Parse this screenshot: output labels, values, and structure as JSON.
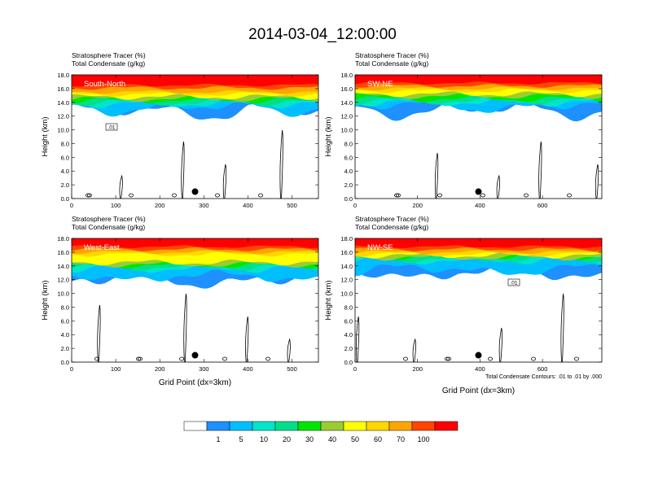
{
  "title": "2014-03-04_12:00:00",
  "chart_data": [
    {
      "type": "heatmap",
      "name": "South-North",
      "header_lines": [
        "Stratosphere Tracer   (%)",
        "Total Condensate   (g/kg)"
      ],
      "panel_label": "South-North",
      "ylabel": "Height (km)",
      "xlabel": "",
      "xlim": [
        0,
        560
      ],
      "ylim": [
        0,
        18
      ],
      "xticks": [
        0,
        100,
        200,
        300,
        400,
        500
      ],
      "yticks": [
        "0.0",
        "2.0",
        "4.0",
        "6.0",
        "8.0",
        "10.0",
        "12.0",
        "14.0",
        "16.0",
        "18.0"
      ],
      "tracer_layer": {
        "top_km": 18,
        "red_from_km": 16.5,
        "orange_from_km": 15.5,
        "yellow_from_km": 14.8,
        "green_from_km": 14.0,
        "blue_from_km": 13.0
      },
      "contour_label": ".01",
      "marker": {
        "x": 280,
        "y_km": 1.0
      }
    },
    {
      "type": "heatmap",
      "name": "SW-NE",
      "header_lines": [
        "Stratosphere Tracer   (%)",
        "Total Condensate   (g/kg)"
      ],
      "panel_label": "SW-NE",
      "ylabel": "Height (km)",
      "xlabel": "",
      "xlim": [
        0,
        790
      ],
      "ylim": [
        0,
        18
      ],
      "xticks": [
        0,
        200,
        400,
        600
      ],
      "yticks": [
        "0.0",
        "2.0",
        "4.0",
        "6.0",
        "8.0",
        "10.0",
        "12.0",
        "14.0",
        "16.0",
        "18.0"
      ],
      "tracer_layer": {
        "top_km": 18,
        "red_from_km": 16.8,
        "orange_from_km": 16.0,
        "yellow_from_km": 15.2,
        "green_from_km": 14.2,
        "blue_from_km": 13.2
      },
      "contour_label": "",
      "marker": {
        "x": 395,
        "y_km": 1.0
      }
    },
    {
      "type": "heatmap",
      "name": "West-East",
      "header_lines": [
        "Stratosphere Tracer   (%)",
        "Total Condensate   (g/kg)"
      ],
      "panel_label": "West-East",
      "ylabel": "Height (km)",
      "xlabel": "Grid Point (dx=3km)",
      "xlim": [
        0,
        560
      ],
      "ylim": [
        0,
        18
      ],
      "xticks": [
        0,
        100,
        200,
        300,
        400,
        500
      ],
      "yticks": [
        "0.0",
        "2.0",
        "4.0",
        "6.0",
        "8.0",
        "10.0",
        "12.0",
        "14.0",
        "16.0",
        "18.0"
      ],
      "tracer_layer": {
        "top_km": 18,
        "red_from_km": 16.8,
        "orange_from_km": 16.0,
        "yellow_from_km": 14.5,
        "green_from_km": 13.8,
        "blue_from_km": 12.2
      },
      "contour_label": "",
      "marker": {
        "x": 280,
        "y_km": 1.0
      }
    },
    {
      "type": "heatmap",
      "name": "NW-SE",
      "header_lines": [
        "Stratosphere Tracer   (%)",
        "Total Condensate   (g/kg)"
      ],
      "panel_label": "NW-SE",
      "ylabel": "Height (km)",
      "xlabel": "Grid Point (dx=3km)",
      "xlim": [
        0,
        790
      ],
      "ylim": [
        0,
        18
      ],
      "xticks": [
        0,
        200,
        400,
        600
      ],
      "yticks": [
        "0.0",
        "2.0",
        "4.0",
        "6.0",
        "8.0",
        "10.0",
        "12.0",
        "14.0",
        "16.0",
        "18.0"
      ],
      "tracer_layer": {
        "top_km": 18,
        "red_from_km": 16.8,
        "orange_from_km": 16.0,
        "yellow_from_km": 15.5,
        "green_from_km": 15.0,
        "blue_from_km": 13.2
      },
      "contour_label": ".01",
      "contour_note": "Total Condensate Contours: .01 to .01 by .000",
      "marker": {
        "x": 395,
        "y_km": 1.0
      }
    }
  ],
  "colorbar": {
    "labels": [
      "1",
      "5",
      "10",
      "20",
      "30",
      "40",
      "50",
      "60",
      "70",
      "100"
    ],
    "colors": [
      "#ffffff",
      "#1e90ff",
      "#00bfff",
      "#00e5cc",
      "#00e08a",
      "#00e600",
      "#9acd32",
      "#ffff00",
      "#ffd700",
      "#ffa500",
      "#ff4500",
      "#ff0000"
    ]
  }
}
